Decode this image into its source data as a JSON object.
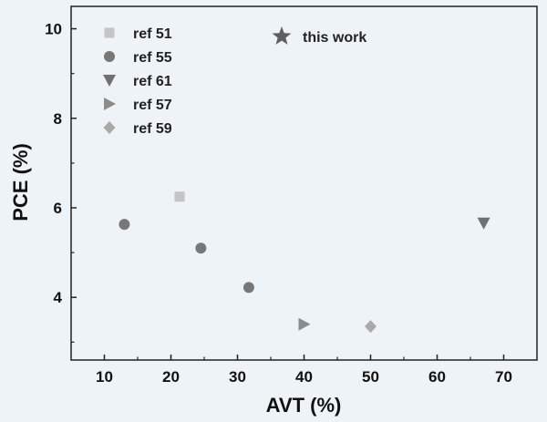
{
  "chart_data": {
    "type": "scatter",
    "xlabel": "AVT (%)",
    "ylabel": "PCE (%)",
    "xlim": [
      5,
      75
    ],
    "ylim": [
      2.6,
      10.5
    ],
    "x_ticks": [
      10,
      20,
      30,
      40,
      50,
      60,
      70
    ],
    "y_ticks": [
      4,
      6,
      8,
      10
    ],
    "grid": false,
    "legend_position": "top-left",
    "series": [
      {
        "name": "ref 51",
        "marker": "square",
        "color": "#c4c4c4",
        "points": [
          {
            "x": 21.3,
            "y": 6.25
          }
        ]
      },
      {
        "name": "ref 55",
        "marker": "circle",
        "color": "#777777",
        "points": [
          {
            "x": 13.0,
            "y": 5.63
          },
          {
            "x": 24.5,
            "y": 5.1
          },
          {
            "x": 31.7,
            "y": 4.22
          }
        ]
      },
      {
        "name": "ref 61",
        "marker": "triangle-down",
        "color": "#707070",
        "points": [
          {
            "x": 67.0,
            "y": 5.66
          }
        ]
      },
      {
        "name": "ref 57",
        "marker": "triangle-right",
        "color": "#8c8c8c",
        "points": [
          {
            "x": 40.0,
            "y": 3.4
          }
        ]
      },
      {
        "name": "ref 59",
        "marker": "diamond",
        "color": "#a9a9a9",
        "points": [
          {
            "x": 50.0,
            "y": 3.35
          }
        ]
      },
      {
        "name": "this work",
        "marker": "star",
        "color": "#5f5f5f",
        "points": []
      }
    ]
  }
}
